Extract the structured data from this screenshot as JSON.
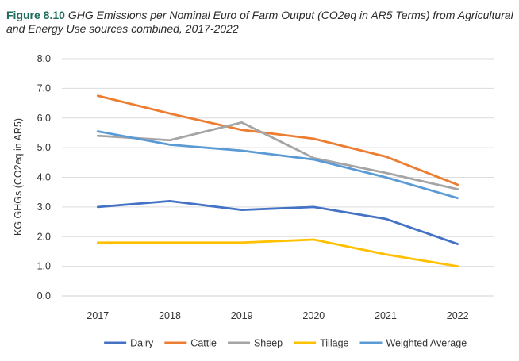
{
  "figure": {
    "label": "Figure 8.10",
    "text": "GHG Emissions per Nominal Euro of Farm Output (CO2eq in AR5 Terms) from Agricultural and Energy Use sources combined, 2017-2022"
  },
  "chart_data": {
    "type": "line",
    "title": "Figure 8.10 GHG Emissions per Nominal Euro of Farm Output (CO2eq in AR5 Terms) from Agricultural and Energy Use sources combined, 2017-2022",
    "xlabel": "",
    "ylabel": "KG GHGs (CO2eq in AR5)",
    "ylim": [
      0,
      8
    ],
    "yticks": [
      "0.0",
      "1.0",
      "2.0",
      "3.0",
      "4.0",
      "5.0",
      "6.0",
      "7.0",
      "8.0"
    ],
    "categories": [
      "2017",
      "2018",
      "2019",
      "2020",
      "2021",
      "2022"
    ],
    "grid": true,
    "legend_position": "bottom",
    "series": [
      {
        "name": "Dairy",
        "color": "#4472C4",
        "values": [
          3.0,
          3.2,
          2.9,
          3.0,
          2.6,
          1.75
        ]
      },
      {
        "name": "Cattle",
        "color": "#ED7D31",
        "values": [
          6.75,
          6.15,
          5.6,
          5.3,
          4.7,
          3.75
        ]
      },
      {
        "name": "Sheep",
        "color": "#A5A5A5",
        "values": [
          5.4,
          5.25,
          5.85,
          4.65,
          4.15,
          3.6
        ]
      },
      {
        "name": "Tillage",
        "color": "#FFC000",
        "values": [
          1.8,
          1.8,
          1.8,
          1.9,
          1.4,
          1.0
        ]
      },
      {
        "name": "Weighted Average",
        "color": "#5B9BD5",
        "values": [
          5.55,
          5.1,
          4.9,
          4.6,
          4.0,
          3.3
        ]
      }
    ]
  }
}
